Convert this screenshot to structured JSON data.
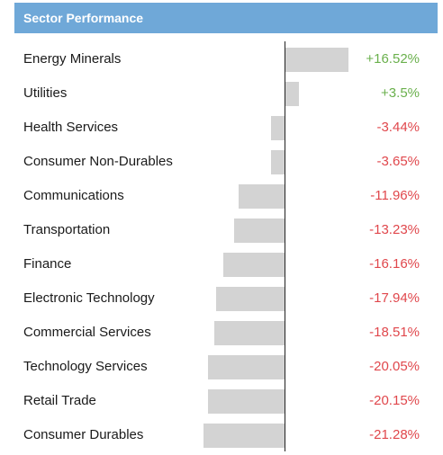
{
  "header": {
    "title": "Sector Performance"
  },
  "colors": {
    "header_bg": "#6fa8d8",
    "bar": "#d3d3d3",
    "positive": "#6ab04c",
    "negative": "#e0474c",
    "axis": "#222222"
  },
  "chart_data": {
    "type": "bar",
    "orientation": "horizontal",
    "title": "Sector Performance",
    "categories": [
      "Energy Minerals",
      "Utilities",
      "Health Services",
      "Consumer Non-Durables",
      "Communications",
      "Transportation",
      "Finance",
      "Electronic Technology",
      "Commercial Services",
      "Technology Services",
      "Retail Trade",
      "Consumer Durables"
    ],
    "values": [
      16.52,
      3.5,
      -3.44,
      -3.65,
      -11.96,
      -13.23,
      -16.16,
      -17.94,
      -18.51,
      -20.05,
      -20.15,
      -21.28
    ],
    "value_labels": [
      "+16.52%",
      "+3.5%",
      "-3.44%",
      "-3.65%",
      "-11.96%",
      "-13.23%",
      "-16.16%",
      "-17.94%",
      "-18.51%",
      "-20.05%",
      "-20.15%",
      "-21.28%"
    ],
    "unit": "%",
    "grid": false
  }
}
